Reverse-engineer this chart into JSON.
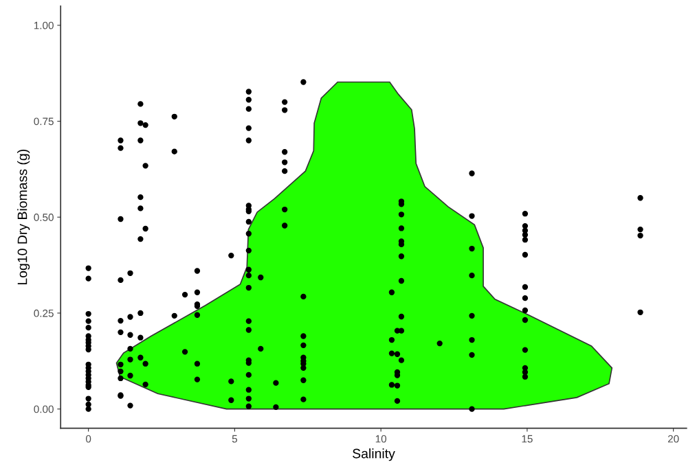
{
  "chart_data": {
    "type": "scatter",
    "xlabel": "Salinity",
    "ylabel": "Log10 Dry Biomass (g)",
    "xlim": [
      -0.95,
      20.45
    ],
    "ylim": [
      -0.05,
      1.05
    ],
    "xticks": [
      0,
      5,
      10,
      15,
      20
    ],
    "yticks": [
      {
        "value": 0,
        "label": "0.00"
      },
      {
        "value": 0.25,
        "label": "0.25"
      },
      {
        "value": 0.5,
        "label": "0.50"
      },
      {
        "value": 0.75,
        "label": "0.75"
      },
      {
        "value": 1,
        "label": "1.00"
      }
    ],
    "grid": false,
    "series": [
      {
        "type": "area",
        "color": "#22ff00",
        "x": [
          14.2,
          16.7,
          17.8,
          17.9,
          17.2,
          15.05,
          13.9,
          13.5,
          13.5,
          13.2,
          12.3,
          11.5,
          11.2,
          11.15,
          11.05,
          10.6,
          10.3,
          8.52,
          7.96,
          7.72,
          7.7,
          7.42,
          6.36,
          5.77,
          5.47,
          5.42,
          5.19,
          4.0,
          2.14,
          1.2,
          0.96,
          1.08,
          2.37,
          4.72
        ],
        "values": [
          0,
          0.03,
          0.066,
          0.107,
          0.164,
          0.245,
          0.286,
          0.32,
          0.42,
          0.48,
          0.527,
          0.58,
          0.64,
          0.73,
          0.78,
          0.82,
          0.852,
          0.852,
          0.81,
          0.745,
          0.673,
          0.62,
          0.548,
          0.513,
          0.468,
          0.37,
          0.325,
          0.27,
          0.19,
          0.146,
          0.12,
          0.084,
          0.04,
          0
        ]
      },
      {
        "color": "#000000",
        "marker": "circle",
        "x": [
          0,
          0,
          0,
          0,
          0,
          0,
          0,
          0,
          0,
          0,
          0,
          0,
          0,
          0,
          0,
          0,
          0,
          0,
          0,
          0,
          0,
          1.1,
          1.1,
          1.1,
          1.1,
          1.1,
          1.1,
          1.1,
          1.1,
          1.1,
          1.1,
          1.1,
          1.43,
          1.43,
          1.43,
          1.43,
          1.43,
          1.43,
          1.43,
          1.78,
          1.78,
          1.78,
          1.78,
          1.78,
          1.78,
          1.78,
          1.78,
          1.78,
          1.95,
          1.95,
          1.95,
          1.95,
          1.95,
          2.94,
          2.94,
          2.94,
          3.3,
          3.3,
          3.72,
          3.72,
          3.72,
          3.72,
          3.72,
          3.72,
          3.72,
          4.88,
          4.88,
          4.88,
          5.48,
          5.48,
          5.48,
          5.48,
          5.48,
          5.48,
          5.48,
          5.48,
          5.48,
          5.48,
          5.48,
          5.48,
          5.48,
          5.48,
          5.48,
          5.48,
          5.48,
          5.48,
          5.48,
          5.48,
          5.48,
          5.48,
          5.89,
          5.89,
          6.41,
          6.41,
          6.71,
          6.71,
          6.71,
          6.71,
          6.71,
          6.71,
          6.71,
          7.35,
          7.35,
          7.35,
          7.35,
          7.35,
          7.35,
          7.35,
          7.35,
          7.35,
          7.35,
          10.7,
          10.7,
          10.7,
          10.7,
          10.7,
          10.7,
          10.7,
          10.7,
          10.7,
          10.7,
          10.7,
          10.56,
          10.56,
          10.56,
          10.56,
          10.56,
          10.56,
          10.37,
          10.37,
          10.37,
          10.37,
          12.01,
          13.11,
          13.11,
          13.11,
          13.11,
          13.11,
          13.11,
          13.11,
          13.11,
          14.93,
          14.93,
          14.93,
          14.93,
          14.93,
          14.93,
          14.93,
          14.93,
          14.93,
          14.93,
          14.93,
          14.93,
          14.93,
          14.93,
          18.87,
          18.87,
          18.87,
          18.87
        ],
        "values": [
          0.367,
          0.34,
          0.248,
          0.229,
          0.212,
          0.19,
          0.18,
          0.173,
          0.164,
          0.155,
          0.116,
          0.107,
          0.098,
          0.089,
          0.08,
          0.071,
          0.062,
          0.057,
          0.027,
          0.012,
          0.0,
          0.7,
          0.68,
          0.495,
          0.336,
          0.23,
          0.2,
          0.116,
          0.098,
          0.08,
          0.036,
          0.034,
          0.354,
          0.24,
          0.193,
          0.157,
          0.129,
          0.087,
          0.009,
          0.795,
          0.745,
          0.7,
          0.552,
          0.523,
          0.443,
          0.25,
          0.186,
          0.134,
          0.74,
          0.634,
          0.47,
          0.118,
          0.064,
          0.762,
          0.671,
          0.243,
          0.298,
          0.149,
          0.36,
          0.304,
          0.273,
          0.268,
          0.245,
          0.118,
          0.077,
          0.4,
          0.072,
          0.023,
          0.827,
          0.806,
          0.782,
          0.732,
          0.7,
          0.53,
          0.52,
          0.515,
          0.488,
          0.457,
          0.413,
          0.363,
          0.348,
          0.316,
          0.229,
          0.206,
          0.127,
          0.12,
          0.089,
          0.05,
          0.027,
          0.007,
          0.343,
          0.157,
          0.068,
          0.005,
          0.8,
          0.779,
          0.67,
          0.643,
          0.62,
          0.52,
          0.478,
          0.852,
          0.293,
          0.19,
          0.166,
          0.134,
          0.125,
          0.118,
          0.107,
          0.075,
          0.025,
          0.541,
          0.534,
          0.507,
          0.471,
          0.437,
          0.429,
          0.398,
          0.334,
          0.241,
          0.204,
          0.127,
          0.204,
          0.143,
          0.096,
          0.088,
          0.061,
          0.021,
          0.304,
          0.18,
          0.145,
          0.063,
          0.171,
          0.614,
          0.503,
          0.418,
          0.348,
          0.243,
          0.18,
          0.141,
          0.0,
          0.509,
          0.477,
          0.465,
          0.454,
          0.441,
          0.402,
          0.318,
          0.289,
          0.257,
          0.232,
          0.154,
          0.107,
          0.096,
          0.084,
          0.55,
          0.468,
          0.452,
          0.252
        ]
      }
    ]
  }
}
